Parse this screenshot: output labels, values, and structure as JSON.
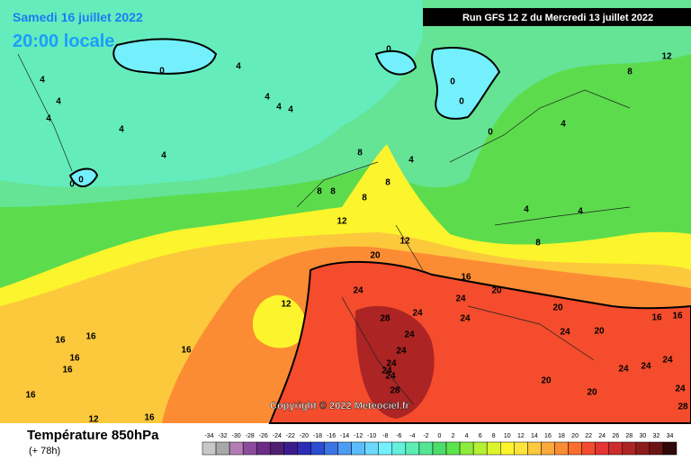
{
  "header": {
    "date": "Samedi 16 juillet 2022",
    "time": "20:00 locale",
    "run": "Run GFS 12 Z du Mercredi 13 juillet 2022"
  },
  "copyright": "Copyright © 2022 Meteociel.fr",
  "footer": {
    "title": "Température 850hPa",
    "lead": "(+ 78h)"
  },
  "legend": {
    "ticks": [
      -34,
      -32,
      -30,
      -28,
      -26,
      -24,
      -22,
      -20,
      -18,
      -16,
      -14,
      -12,
      -10,
      -8,
      -6,
      -4,
      -2,
      0,
      2,
      4,
      6,
      8,
      10,
      12,
      14,
      16,
      18,
      20,
      22,
      24,
      26,
      28,
      30,
      32,
      34
    ],
    "colors": [
      "#c8c8c8",
      "#a8a8a8",
      "#b47cb4",
      "#8c4c9c",
      "#6c2c84",
      "#502070",
      "#3c1c8c",
      "#2c2cb4",
      "#2c4cd4",
      "#3c74e4",
      "#4c9cf4",
      "#5cbcfc",
      "#6cd8fc",
      "#74f0fc",
      "#64f0dc",
      "#5cecb4",
      "#54e494",
      "#4cdc6c",
      "#5ce44c",
      "#8cec3c",
      "#b4f034",
      "#dcf42c",
      "#fcf42c",
      "#fce43c",
      "#fcc83c",
      "#fca83c",
      "#fc8c34",
      "#fc6c2c",
      "#f44c2c",
      "#e43434",
      "#cc2c2c",
      "#ac2424",
      "#8c1c1c",
      "#6c1414",
      "#300808"
    ]
  },
  "contour_labels": [
    0,
    0,
    0,
    0,
    0,
    0,
    0,
    4,
    4,
    4,
    4,
    4,
    4,
    4,
    4,
    4,
    4,
    4,
    4,
    4,
    8,
    8,
    8,
    8,
    8,
    8,
    8,
    12,
    12,
    12,
    12,
    12,
    16,
    16,
    16,
    16,
    16,
    16,
    16,
    16,
    16,
    16,
    20,
    20,
    20,
    20,
    20,
    20,
    24,
    24,
    24,
    24,
    24,
    24,
    24,
    24,
    24,
    24,
    24,
    24,
    24,
    24,
    28,
    28,
    28
  ]
}
